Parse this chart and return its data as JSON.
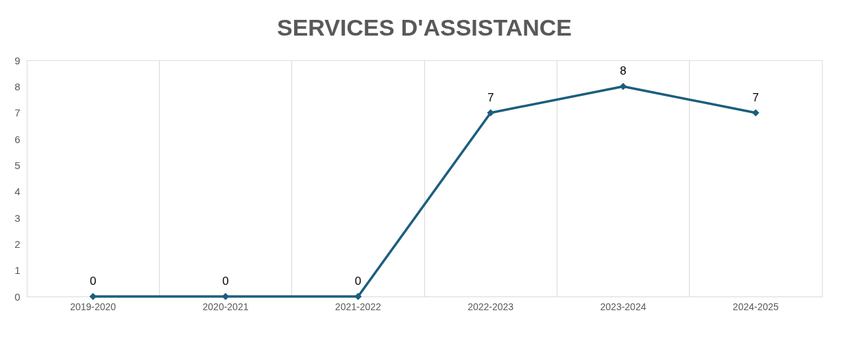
{
  "chart_data": {
    "type": "line",
    "title": "SERVICES D'ASSISTANCE",
    "categories": [
      "2019-2020",
      "2020-2021",
      "2021-2022",
      "2022-2023",
      "2023-2024",
      "2024-2025"
    ],
    "series": [
      {
        "color": "#1b5e7e",
        "values": [
          0,
          0,
          0,
          7,
          8,
          7
        ]
      }
    ],
    "ylim": [
      0,
      9
    ],
    "yticks": [
      0,
      1,
      2,
      3,
      4,
      5,
      6,
      7,
      8,
      9
    ],
    "grid": "x",
    "marker": "diamond",
    "line_style": "solid",
    "data_labels": true
  }
}
